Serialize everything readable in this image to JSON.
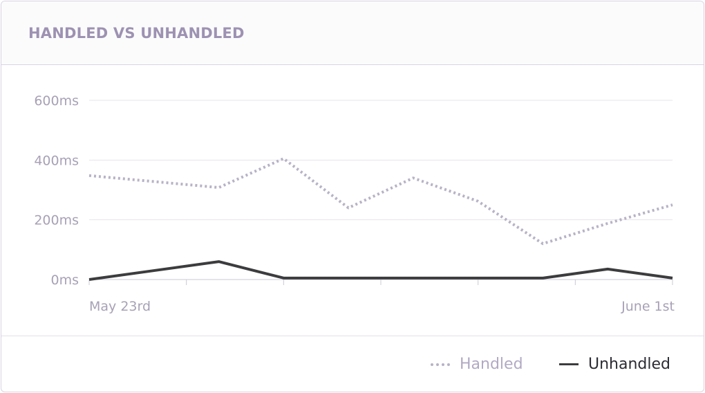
{
  "header": {
    "title": "HANDLED VS UNHANDLED"
  },
  "chart_data": {
    "type": "line",
    "x": [
      "2018-05-23",
      "2018-05-24",
      "2018-05-25",
      "2018-05-26",
      "2018-05-27",
      "2018-05-28",
      "2018-05-29",
      "2018-05-30",
      "2018-05-31",
      "2018-06-01"
    ],
    "x_tick_labels": [
      "May 23rd",
      "June 1st"
    ],
    "y_tick_labels": [
      "0ms",
      "200ms",
      "400ms",
      "600ms"
    ],
    "ylim": [
      0,
      600
    ],
    "grid": true,
    "legend_position": "bottom-right",
    "series": [
      {
        "name": "Handled",
        "style": "dotted",
        "color": "#b8b2c6",
        "values": [
          348,
          328,
          308,
          405,
          240,
          340,
          262,
          120,
          188,
          250
        ]
      },
      {
        "name": "Unhandled",
        "style": "solid",
        "color": "#3c3c3e",
        "values": [
          0,
          30,
          60,
          5,
          5,
          5,
          5,
          5,
          35,
          5
        ]
      }
    ]
  },
  "legend": {
    "handled_label": "Handled",
    "unhandled_label": "Unhandled"
  }
}
